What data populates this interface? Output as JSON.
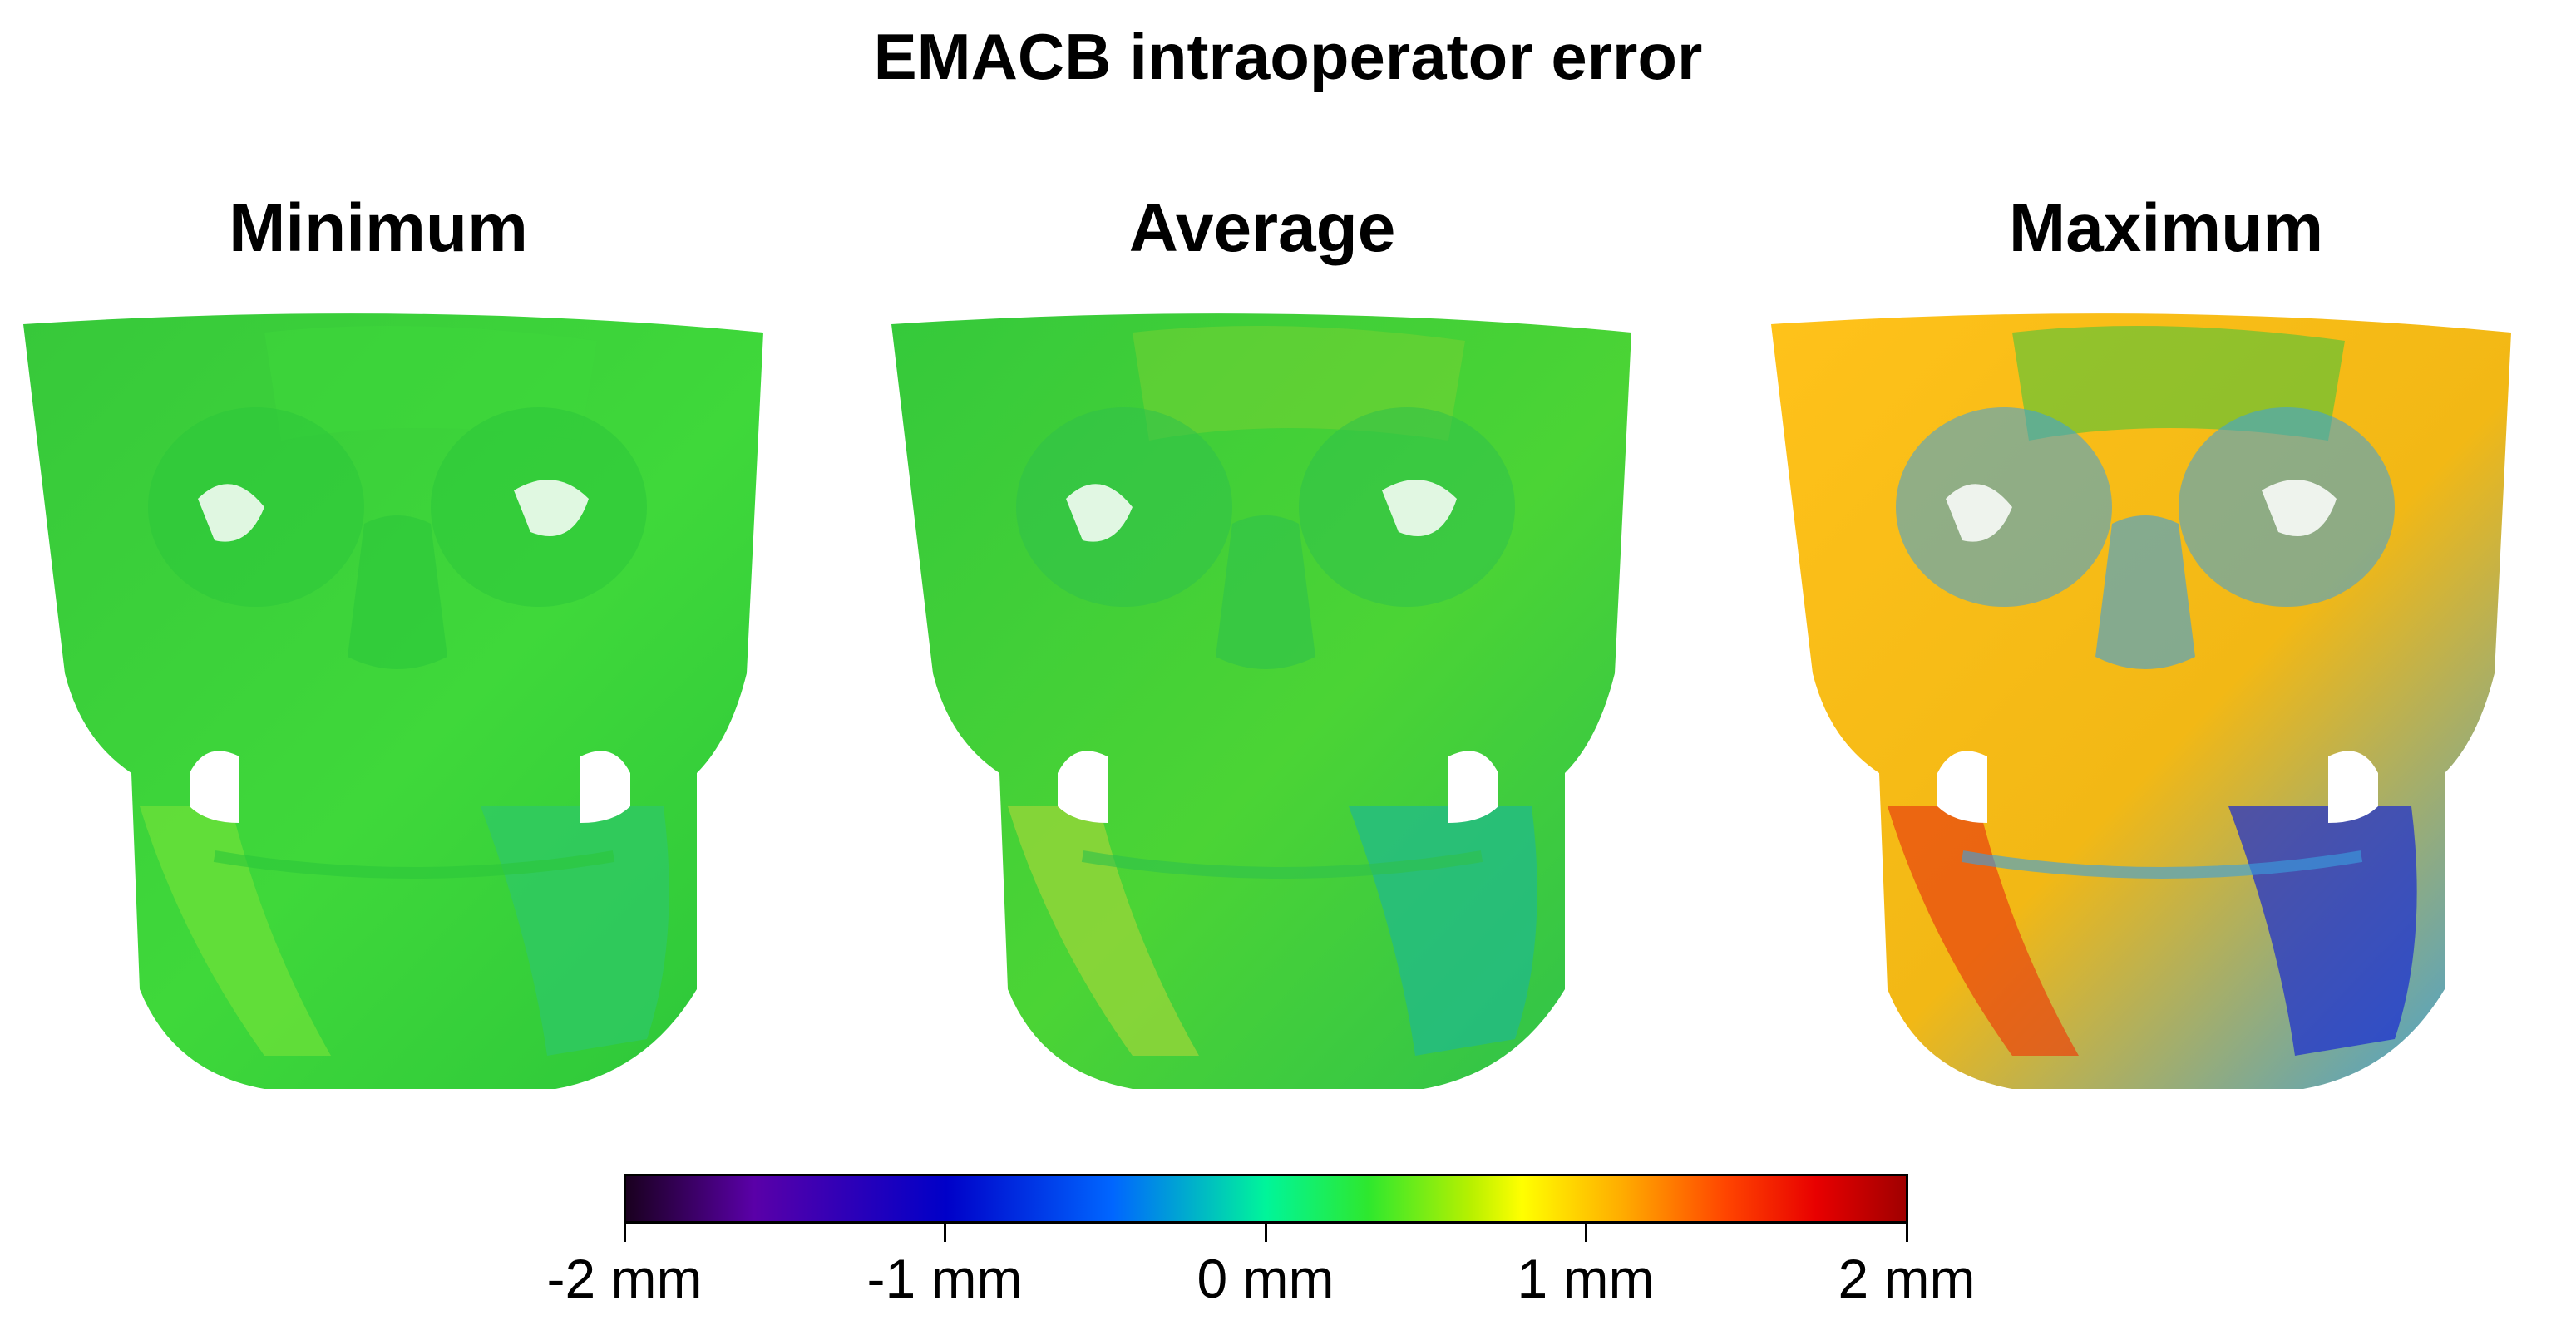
{
  "figure": {
    "title": "EMACB intraoperator error",
    "panels": [
      {
        "label": "Minimum",
        "shade_top": "#37c83a",
        "shade_mid": "#3fd83a",
        "shade_low": "#2cc63a",
        "accent": "#6ee03a",
        "accent2": "#2ec86a",
        "accent3": "#3ed83a"
      },
      {
        "label": "Average",
        "shade_top": "#35c93b",
        "shade_mid": "#4bd435",
        "shade_low": "#2fc14b",
        "accent": "#9ad63a",
        "accent2": "#1fb98e",
        "accent3": "#7ad232"
      },
      {
        "label": "Maximum",
        "shade_top": "#ffc21a",
        "shade_mid": "#f2b815",
        "shade_low": "#3aa0e0",
        "accent": "#e84a10",
        "accent2": "#1a2ad0",
        "accent3": "#2cc640"
      }
    ]
  },
  "colorbar": {
    "ticks": [
      "-2 mm",
      "-1 mm",
      "0 mm",
      "1 mm",
      "2 mm"
    ],
    "stops": [
      "#1a001f",
      "#5a00a8",
      "#0000c8",
      "#0066ff",
      "#00f59a",
      "#2ee82e",
      "#b7f000",
      "#ffff00",
      "#ffaa00",
      "#ff4400",
      "#e80000",
      "#a00000"
    ]
  }
}
